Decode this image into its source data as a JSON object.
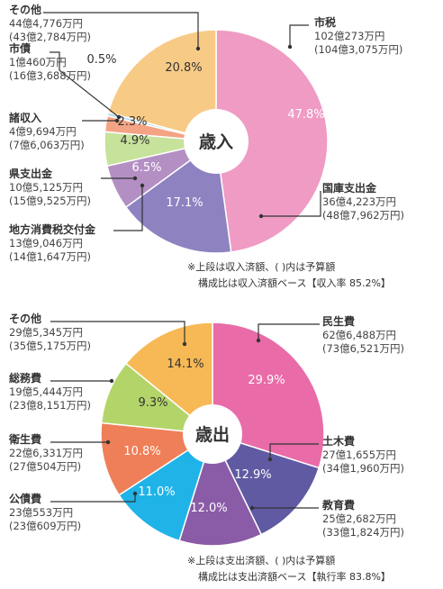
{
  "chart_data": [
    {
      "type": "pie",
      "title": "歳入",
      "slices": [
        {
          "name": "市税",
          "value": 47.8,
          "amount": "102億273万円",
          "budget": "(104億3,075万円)",
          "pct_label": "47.8%",
          "color": "#EF9BC4"
        },
        {
          "name": "国庫支出金",
          "value": 17.1,
          "amount": "36億4,223万円",
          "budget": "(48億7,962万円)",
          "pct_label": "17.1%",
          "color": "#8E82C1"
        },
        {
          "name": "地方消費税交付金",
          "value": 6.5,
          "amount": "13億9,046万円",
          "budget": "(14億1,647万円)",
          "pct_label": "6.5%",
          "color": "#B48FC4"
        },
        {
          "name": "県支出金",
          "value": 4.9,
          "amount": "10億5,125万円",
          "budget": "(15億9,525万円)",
          "pct_label": "4.9%",
          "color": "#C6E29B"
        },
        {
          "name": "諸収入",
          "value": 2.3,
          "amount": "4億9,694万円",
          "budget": "(7億6,063万円)",
          "pct_label": "2.3%",
          "color": "#F4A384"
        },
        {
          "name": "市債",
          "value": 0.5,
          "amount": "1億460万円",
          "budget": "(16億3,688万円)",
          "pct_label": "0.5%",
          "color": "#B8DCEE"
        },
        {
          "name": "その他",
          "value": 20.8,
          "amount": "44億4,776万円",
          "budget": "(43億2,784万円)",
          "pct_label": "20.8%",
          "color": "#F7CB86"
        }
      ],
      "note_line1": "※上段は収入済額、( )内は予算額",
      "note_line2": "構成比は収入済額ベース【収入率 85.2%】"
    },
    {
      "type": "pie",
      "title": "歳出",
      "slices": [
        {
          "name": "民生費",
          "value": 29.9,
          "amount": "62億6,488万円",
          "budget": "(73億6,521万円)",
          "pct_label": "29.9%",
          "color": "#E96BA8"
        },
        {
          "name": "土木費",
          "value": 12.9,
          "amount": "27億1,655万円",
          "budget": "(34億1,960万円)",
          "pct_label": "12.9%",
          "color": "#5F5AA2"
        },
        {
          "name": "教育費",
          "value": 12.0,
          "amount": "25億2,682万円",
          "budget": "(33億1,824万円)",
          "pct_label": "12.0%",
          "color": "#8A5BA6"
        },
        {
          "name": "公債費",
          "value": 11.0,
          "amount": "23億553万円",
          "budget": "(23億609万円)",
          "pct_label": "11.0%",
          "color": "#1FB3E8"
        },
        {
          "name": "衛生費",
          "value": 10.8,
          "amount": "22億6,331万円",
          "budget": "(27億504万円)",
          "pct_label": "10.8%",
          "color": "#EF7F58"
        },
        {
          "name": "総務費",
          "value": 9.3,
          "amount": "19億5,444万円",
          "budget": "(23億8,151万円)",
          "pct_label": "9.3%",
          "color": "#B3D468"
        },
        {
          "name": "その他",
          "value": 14.1,
          "amount": "29億5,345万円",
          "budget": "(35億5,175万円)",
          "pct_label": "14.1%",
          "color": "#F6B955"
        }
      ],
      "note_line1": "※上段は支出済額、( )内は予算額",
      "note_line2": "構成比は支出済額ベース【執行率 83.8%】"
    }
  ]
}
